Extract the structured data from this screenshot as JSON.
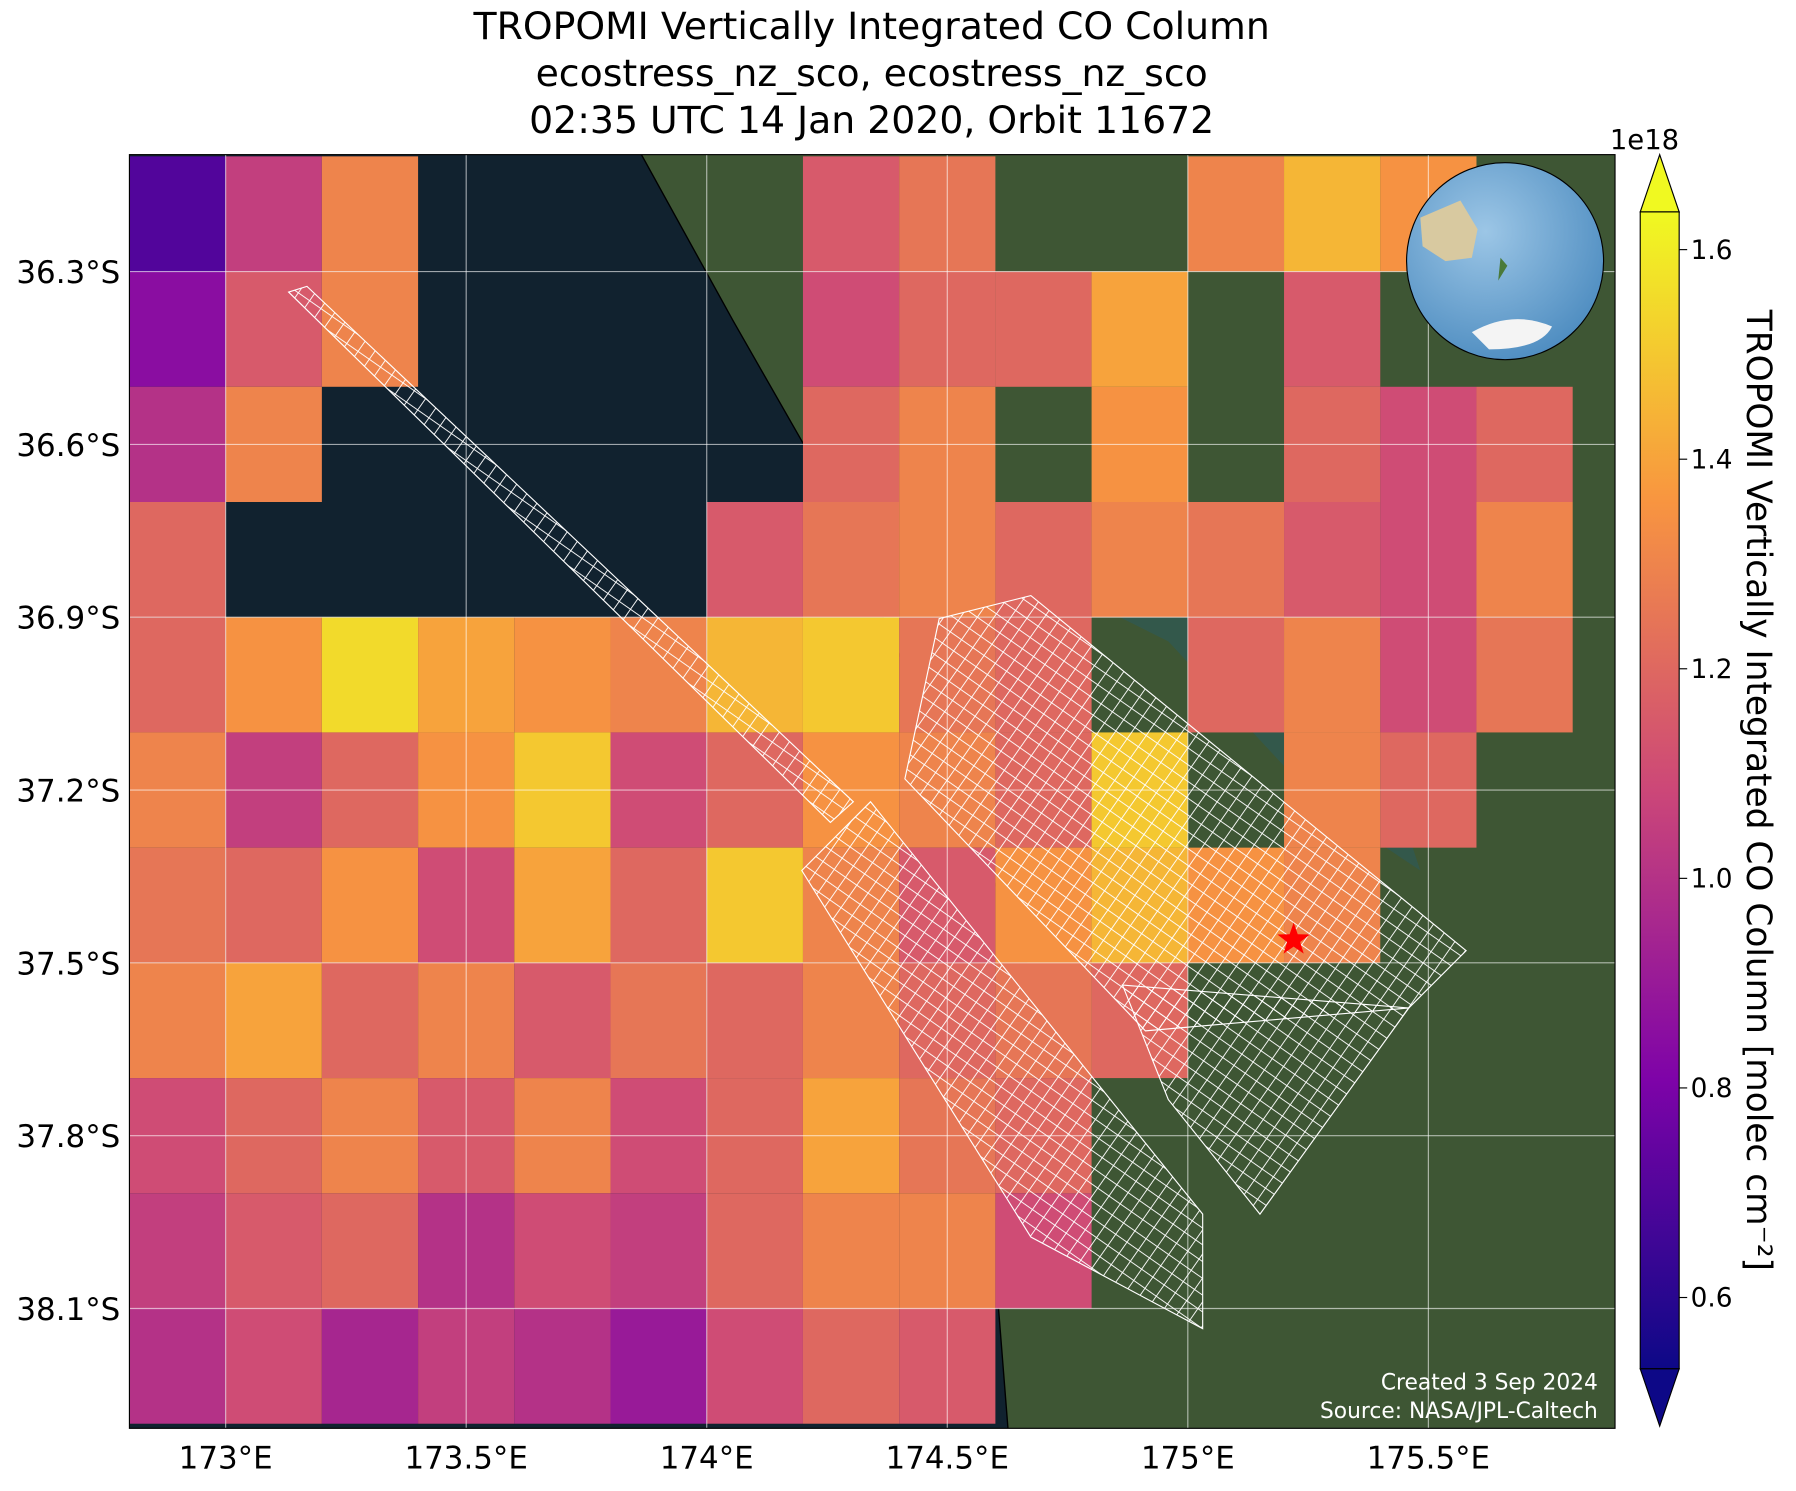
{
  "chart_data": {
    "type": "heatmap",
    "title": [
      "TROPOMI Vertically Integrated CO Column",
      "ecostress_nz_sco, ecostress_nz_sco",
      "02:35 UTC 14 Jan 2020, Orbit 11672"
    ],
    "xlim": [
      172.8,
      175.888
    ],
    "ylim": [
      -36.097,
      -38.308
    ],
    "xticks": [
      {
        "value": 173,
        "label": "173°E"
      },
      {
        "value": 173.5,
        "label": "173.5°E"
      },
      {
        "value": 174,
        "label": "174°E"
      },
      {
        "value": 174.5,
        "label": "174.5°E"
      },
      {
        "value": 175,
        "label": "175°E"
      },
      {
        "value": 175.5,
        "label": "175.5°E"
      }
    ],
    "yticks": [
      {
        "value": -36.3,
        "label": "36.3°S"
      },
      {
        "value": -36.6,
        "label": "36.6°S"
      },
      {
        "value": -36.9,
        "label": "36.9°S"
      },
      {
        "value": -37.2,
        "label": "37.2°S"
      },
      {
        "value": -37.5,
        "label": "37.5°S"
      },
      {
        "value": -37.8,
        "label": "37.8°S"
      },
      {
        "value": -38.1,
        "label": "38.1°S"
      }
    ],
    "grid": true,
    "x_edges": [
      172.8,
      173.0,
      173.2,
      173.4,
      173.6,
      173.8,
      174.0,
      174.2,
      174.4,
      174.6,
      174.8,
      175.0,
      175.2,
      175.4,
      175.6,
      175.8
    ],
    "y_edges": [
      -36.1,
      -36.3,
      -36.5,
      -36.7,
      -36.9,
      -37.1,
      -37.3,
      -37.5,
      -37.7,
      -37.9,
      -38.1,
      -38.3
    ],
    "values": [
      [
        0.7,
        1.05,
        1.3,
        null,
        null,
        null,
        null,
        1.15,
        1.25,
        null,
        null,
        1.3,
        1.45,
        1.35,
        null
      ],
      [
        0.85,
        1.15,
        1.3,
        null,
        null,
        null,
        null,
        1.1,
        1.2,
        1.2,
        1.4,
        null,
        1.15,
        null,
        null
      ],
      [
        1.0,
        1.3,
        null,
        null,
        null,
        null,
        null,
        1.2,
        1.3,
        null,
        1.35,
        null,
        1.2,
        1.1,
        1.2
      ],
      [
        1.2,
        null,
        null,
        null,
        null,
        null,
        1.15,
        1.25,
        1.3,
        1.2,
        1.3,
        1.25,
        1.15,
        1.1,
        1.3
      ],
      [
        1.2,
        1.35,
        1.55,
        1.4,
        1.35,
        1.3,
        1.45,
        1.5,
        1.25,
        1.2,
        null,
        1.2,
        1.3,
        1.1,
        1.25
      ],
      [
        1.3,
        1.05,
        1.2,
        1.35,
        1.5,
        1.1,
        1.2,
        1.35,
        1.3,
        1.2,
        1.5,
        null,
        1.3,
        1.2,
        null
      ],
      [
        1.25,
        1.2,
        1.35,
        1.1,
        1.4,
        1.2,
        1.5,
        1.3,
        1.15,
        1.35,
        1.45,
        1.35,
        1.3,
        null,
        null
      ],
      [
        1.3,
        1.4,
        1.2,
        1.3,
        1.15,
        1.25,
        1.2,
        1.3,
        1.2,
        1.25,
        1.2,
        null,
        null,
        null,
        null
      ],
      [
        1.1,
        1.2,
        1.3,
        1.15,
        1.3,
        1.1,
        1.2,
        1.4,
        1.25,
        1.2,
        null,
        null,
        null,
        null,
        null
      ],
      [
        1.05,
        1.15,
        1.2,
        1.0,
        1.1,
        1.05,
        1.2,
        1.3,
        1.3,
        1.1,
        null,
        null,
        null,
        null,
        null
      ],
      [
        1.0,
        1.1,
        0.95,
        1.05,
        1.0,
        0.9,
        1.1,
        1.2,
        1.15,
        null,
        null,
        null,
        null,
        null,
        null
      ]
    ],
    "marker": {
      "lon": 175.22,
      "lat": -37.46,
      "color": "#ff0000"
    },
    "colorbar": {
      "label": "TROPOMI Vertically Integrated CO Column [molec cm⁻²]",
      "exponent": "1e18",
      "colormap": "plasma",
      "lim": [
        0.532,
        1.636
      ],
      "ticks": [
        0.6,
        0.8,
        {
          "value": 1,
          "label": "1.0"
        },
        1.2,
        1.4,
        1.6
      ]
    },
    "footer": [
      "Created 3 Sep 2024",
      "Source: NASA/JPL-Caltech"
    ]
  }
}
